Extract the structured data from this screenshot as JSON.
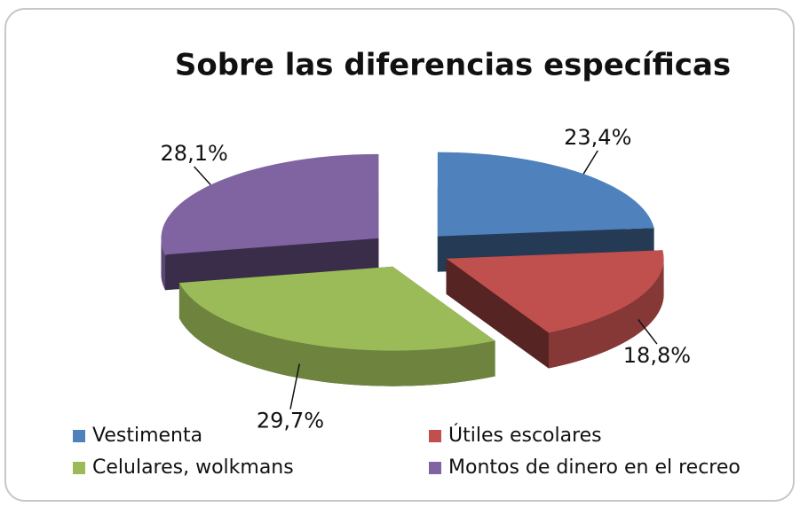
{
  "chart_data": {
    "type": "pie3d",
    "title": "Sobre las diferencias específicas",
    "categories": [
      "Vestimenta",
      "Útiles escolares",
      "Celulares, wolkmans",
      "Montos de dinero en el recreo"
    ],
    "values": [
      23.4,
      18.8,
      29.7,
      28.1
    ],
    "value_labels": [
      "23,4%",
      "18,8%",
      "29,7%",
      "28,1%"
    ],
    "colors": [
      "#4f81bd",
      "#c0504d",
      "#9bbb59",
      "#8064a2"
    ],
    "legend": "bottom"
  }
}
